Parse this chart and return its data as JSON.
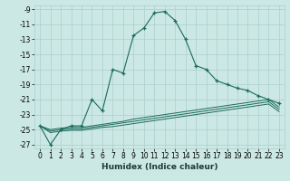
{
  "title": "",
  "xlabel": "Humidex (Indice chaleur)",
  "bg_color": "#cce8e4",
  "grid_color": "#aacfcc",
  "line_color": "#1a6b5a",
  "xlim": [
    -0.5,
    23.5
  ],
  "ylim": [
    -27.5,
    -8.5
  ],
  "yticks": [
    -27,
    -25,
    -23,
    -21,
    -19,
    -17,
    -15,
    -13,
    -11,
    -9
  ],
  "xticks": [
    0,
    1,
    2,
    3,
    4,
    5,
    6,
    7,
    8,
    9,
    10,
    11,
    12,
    13,
    14,
    15,
    16,
    17,
    18,
    19,
    20,
    21,
    22,
    23
  ],
  "main_y": [
    -24.5,
    -27.0,
    -25.0,
    -24.5,
    -24.5,
    -21.0,
    -22.5,
    -17.0,
    -17.5,
    -12.5,
    -11.5,
    -9.5,
    -9.3,
    -10.5,
    -13.0,
    -16.5,
    -17.0,
    -18.5,
    -19.0,
    -19.5,
    -19.8,
    -20.5,
    -21.0,
    -21.5
  ],
  "line2_y": [
    -24.5,
    -25.0,
    -24.8,
    -24.7,
    -24.7,
    -24.5,
    -24.3,
    -24.1,
    -23.9,
    -23.6,
    -23.4,
    -23.2,
    -23.0,
    -22.8,
    -22.6,
    -22.4,
    -22.2,
    -22.0,
    -21.8,
    -21.6,
    -21.4,
    -21.2,
    -21.0,
    -22.0
  ],
  "line3_y": [
    -24.5,
    -25.2,
    -25.0,
    -24.9,
    -24.9,
    -24.7,
    -24.5,
    -24.3,
    -24.1,
    -23.9,
    -23.7,
    -23.5,
    -23.3,
    -23.1,
    -22.9,
    -22.7,
    -22.5,
    -22.3,
    -22.1,
    -21.9,
    -21.7,
    -21.5,
    -21.3,
    -22.3
  ],
  "line4_y": [
    -24.5,
    -25.4,
    -25.2,
    -25.1,
    -25.1,
    -24.9,
    -24.7,
    -24.6,
    -24.4,
    -24.2,
    -24.0,
    -23.8,
    -23.6,
    -23.4,
    -23.2,
    -23.0,
    -22.8,
    -22.6,
    -22.4,
    -22.2,
    -22.0,
    -21.8,
    -21.6,
    -22.6
  ],
  "tick_fontsize": 5.5,
  "xlabel_fontsize": 6.5
}
